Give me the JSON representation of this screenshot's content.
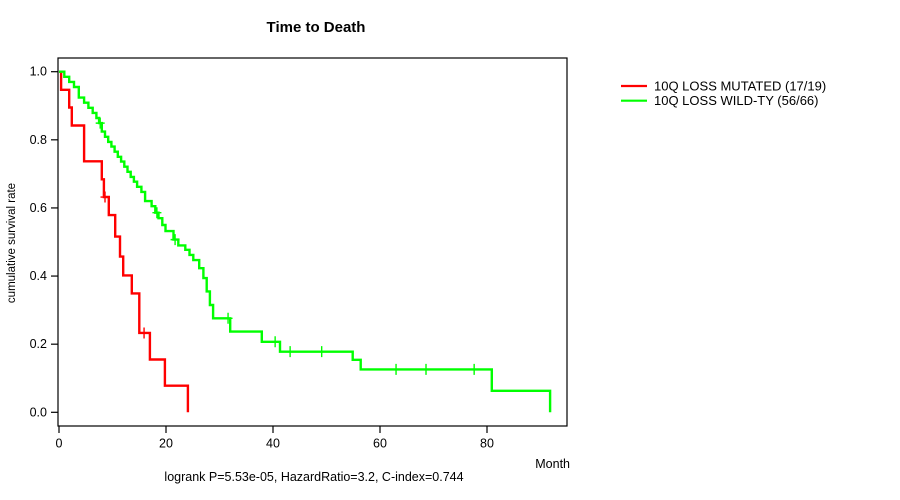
{
  "figure": {
    "title": "Time to Death",
    "xlabel": "Month",
    "ylabel": "cumulative survival rate",
    "annotation": "logrank P=5.53e-05, HazardRatio=3.2, C-index=0.744"
  },
  "chart_data": {
    "type": "line",
    "subtype": "kaplan-meier-step-function",
    "title": "Time to Death",
    "xlabel": "Month",
    "ylabel": "cumulative survival rate",
    "annotation": "logrank P=5.53e-05, HazardRatio=3.2, C-index=0.744",
    "xlim": [
      0,
      95
    ],
    "ylim": [
      0.0,
      1.0
    ],
    "xtick_values": [
      0,
      20,
      40,
      60,
      80
    ],
    "xtick_labels": [
      "0",
      "20",
      "40",
      "60",
      "80"
    ],
    "ytick_values": [
      0.0,
      0.2,
      0.4,
      0.6,
      0.8,
      1.0
    ],
    "ytick_labels": [
      "0.0",
      "0.2",
      "0.4",
      "0.6",
      "0.8",
      "1.0"
    ],
    "grid": false,
    "legend_position": "outside-right",
    "background_color": "#ffffff",
    "series": [
      {
        "name": "10Q LOSS MUTATED (17/19)",
        "color": "#ff0000",
        "events_total": "17/19",
        "steps": [
          [
            0,
            1.0
          ],
          [
            0.4,
            0.947
          ],
          [
            1.9,
            0.895
          ],
          [
            2.4,
            0.842
          ],
          [
            4.7,
            0.737
          ],
          [
            8.0,
            0.684
          ],
          [
            8.4,
            0.632
          ],
          [
            9.3,
            0.579
          ],
          [
            10.5,
            0.516
          ],
          [
            11.4,
            0.457
          ],
          [
            12.0,
            0.402
          ],
          [
            13.6,
            0.349
          ],
          [
            15.0,
            0.233
          ],
          [
            17.0,
            0.155
          ],
          [
            19.8,
            0.078
          ],
          [
            24.1,
            0.0
          ]
        ],
        "censor_marks": [
          [
            8.6,
            0.632
          ],
          [
            15.9,
            0.233
          ]
        ]
      },
      {
        "name": "10Q LOSS WILD-TY (56/66)",
        "color": "#00ff00",
        "events_total": "56/66",
        "steps": [
          [
            0,
            1.0
          ],
          [
            1.0,
            0.985
          ],
          [
            1.9,
            0.97
          ],
          [
            2.8,
            0.955
          ],
          [
            3.7,
            0.924
          ],
          [
            4.7,
            0.909
          ],
          [
            5.5,
            0.894
          ],
          [
            6.3,
            0.879
          ],
          [
            7.0,
            0.864
          ],
          [
            7.5,
            0.849
          ],
          [
            8.0,
            0.824
          ],
          [
            8.6,
            0.809
          ],
          [
            9.2,
            0.794
          ],
          [
            9.8,
            0.78
          ],
          [
            10.4,
            0.765
          ],
          [
            11.0,
            0.75
          ],
          [
            11.6,
            0.736
          ],
          [
            12.2,
            0.721
          ],
          [
            12.8,
            0.706
          ],
          [
            13.4,
            0.691
          ],
          [
            14.0,
            0.677
          ],
          [
            14.6,
            0.662
          ],
          [
            15.4,
            0.647
          ],
          [
            16.1,
            0.62
          ],
          [
            17.3,
            0.605
          ],
          [
            18.0,
            0.586
          ],
          [
            18.6,
            0.57
          ],
          [
            19.3,
            0.55
          ],
          [
            19.9,
            0.532
          ],
          [
            21.4,
            0.507
          ],
          [
            22.3,
            0.49
          ],
          [
            23.6,
            0.477
          ],
          [
            24.4,
            0.462
          ],
          [
            25.1,
            0.447
          ],
          [
            26.2,
            0.423
          ],
          [
            27.0,
            0.394
          ],
          [
            27.6,
            0.355
          ],
          [
            28.2,
            0.315
          ],
          [
            28.8,
            0.276
          ],
          [
            32.0,
            0.237
          ],
          [
            37.9,
            0.207
          ],
          [
            41.3,
            0.178
          ],
          [
            54.9,
            0.154
          ],
          [
            56.4,
            0.126
          ],
          [
            80.9,
            0.063
          ],
          [
            91.8,
            0.0
          ]
        ],
        "censor_marks": [
          [
            7.7,
            0.849
          ],
          [
            18.3,
            0.586
          ],
          [
            21.7,
            0.507
          ],
          [
            31.6,
            0.276
          ],
          [
            40.4,
            0.207
          ],
          [
            43.2,
            0.178
          ],
          [
            49.1,
            0.178
          ],
          [
            63.0,
            0.126
          ],
          [
            68.6,
            0.126
          ],
          [
            77.6,
            0.126
          ]
        ]
      }
    ]
  },
  "legend": {
    "entries": [
      {
        "label": "10Q LOSS MUTATED (17/19)",
        "color": "#ff0000"
      },
      {
        "label": "10Q LOSS WILD-TY (56/66)",
        "color": "#00ff00"
      }
    ]
  }
}
